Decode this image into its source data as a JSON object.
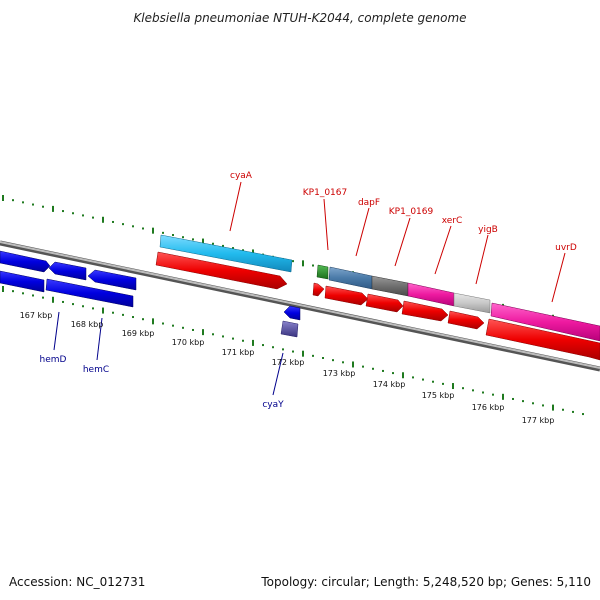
{
  "title": "Klebsiella pneumoniae NTUH-K2044, complete genome",
  "footer": {
    "accession": "Accession: NC_012731",
    "topology": "Topology: circular; Length: 5,248,520 bp; Genes: 5,110"
  },
  "colors": {
    "background": "#ffffff",
    "backbone": "#8c8c8c",
    "tick_marks": "#1f7a1f",
    "label_red": "#cc0000",
    "label_blue": "#00008b"
  },
  "ticks": [
    "167 kbp",
    "168 kbp",
    "169 kbp",
    "170 kbp",
    "171 kbp",
    "172 kbp",
    "173 kbp",
    "174 kbp",
    "175 kbp",
    "176 kbp",
    "177 kbp"
  ],
  "gene_labels": [
    {
      "text": "cyaA",
      "color": "#cc0000"
    },
    {
      "text": "KP1_0167",
      "color": "#cc0000"
    },
    {
      "text": "dapF",
      "color": "#cc0000"
    },
    {
      "text": "KP1_0169",
      "color": "#cc0000"
    },
    {
      "text": "xerC",
      "color": "#cc0000"
    },
    {
      "text": "yigB",
      "color": "#cc0000"
    },
    {
      "text": "uvrD",
      "color": "#cc0000"
    },
    {
      "text": "hemD",
      "color": "#00008b"
    },
    {
      "text": "hemC",
      "color": "#00008b"
    },
    {
      "text": "cyaY",
      "color": "#00008b"
    }
  ]
}
